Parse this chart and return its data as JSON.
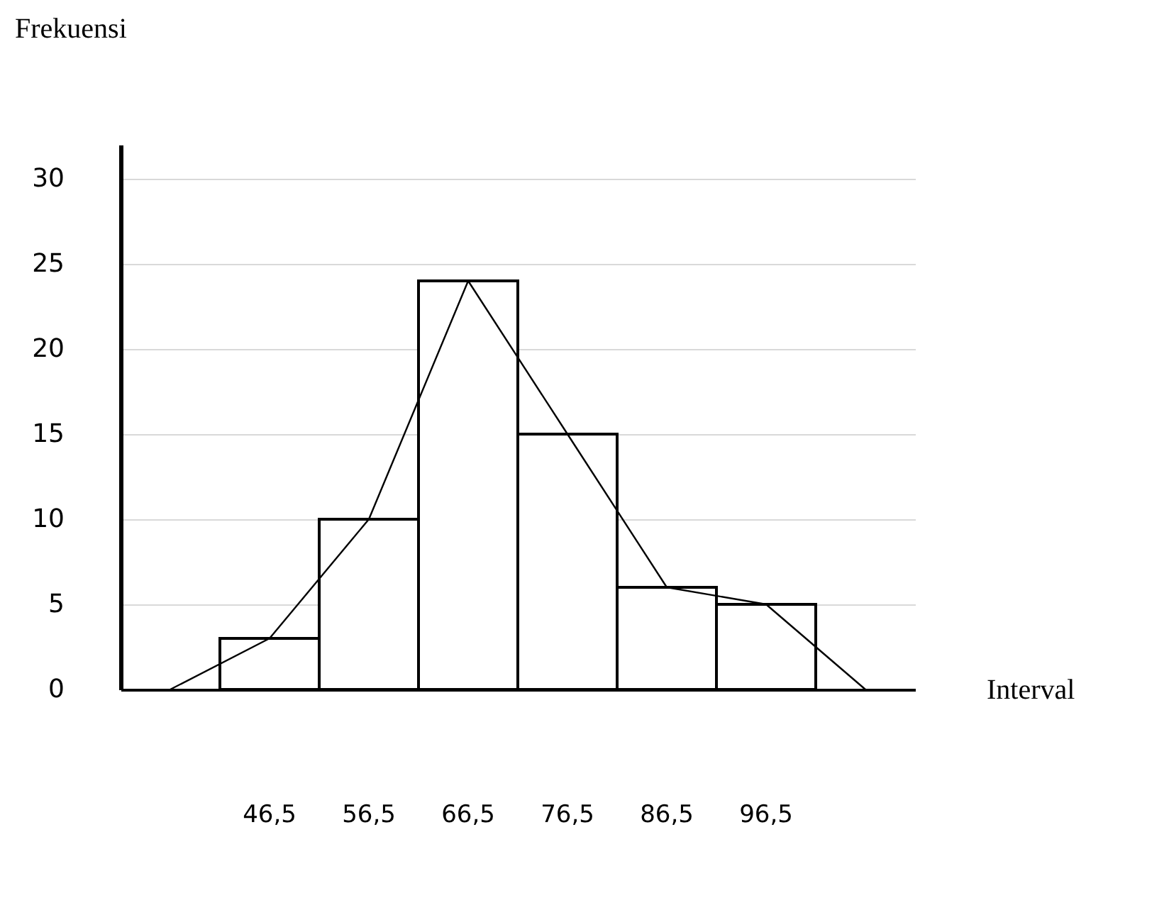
{
  "chart_data": {
    "type": "bar",
    "xlabel": "Interval",
    "ylabel": "Frekuensi",
    "categories": [
      null,
      "46,5",
      "56,5",
      "66,5",
      "76,5",
      "86,5",
      "96,5",
      null
    ],
    "series": [
      {
        "color": "#ffffff",
        "values": [
          null,
          3,
          10,
          24,
          15,
          6,
          5,
          null
        ]
      },
      {
        "type": "line",
        "color": "#000000",
        "values": [
          0,
          3,
          10,
          24,
          15,
          6,
          5,
          0
        ]
      }
    ],
    "ylim": [
      0,
      32
    ],
    "yticks": [
      0,
      5,
      10,
      15,
      20,
      25,
      30
    ],
    "grid": "y",
    "marker": "none",
    "line_style": "solid"
  }
}
